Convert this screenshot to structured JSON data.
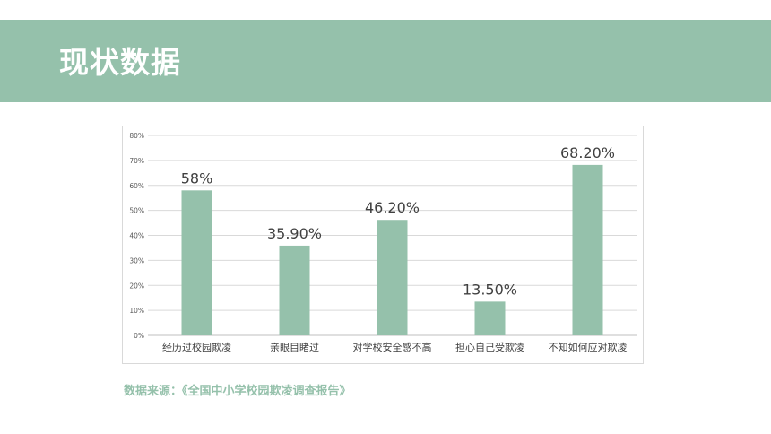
{
  "header": {
    "title": "现状数据"
  },
  "colors": {
    "accent": "#95c1ab",
    "bar": "#95c1ab",
    "grid": "#d9d9d9",
    "text": "#404040"
  },
  "chart_data": {
    "type": "bar",
    "categories": [
      "经历过校园欺凌",
      "亲眼目睹过",
      "对学校安全感不高",
      "担心自己受欺凌",
      "不知如何应对欺凌"
    ],
    "values": [
      58,
      35.9,
      46.2,
      13.5,
      68.2
    ],
    "data_labels": [
      "58%",
      "35.90%",
      "46.20%",
      "13.50%",
      "68.20%"
    ],
    "y_ticks": [
      "0%",
      "10%",
      "20%",
      "30%",
      "40%",
      "50%",
      "60%",
      "70%",
      "80%"
    ],
    "ylim": [
      0,
      80
    ],
    "unit": "%",
    "grid": true,
    "legend": "none",
    "title": "",
    "xlabel": "",
    "ylabel": ""
  },
  "footer": {
    "source": "数据来源：《全国中小学校园欺凌调查报告》"
  }
}
